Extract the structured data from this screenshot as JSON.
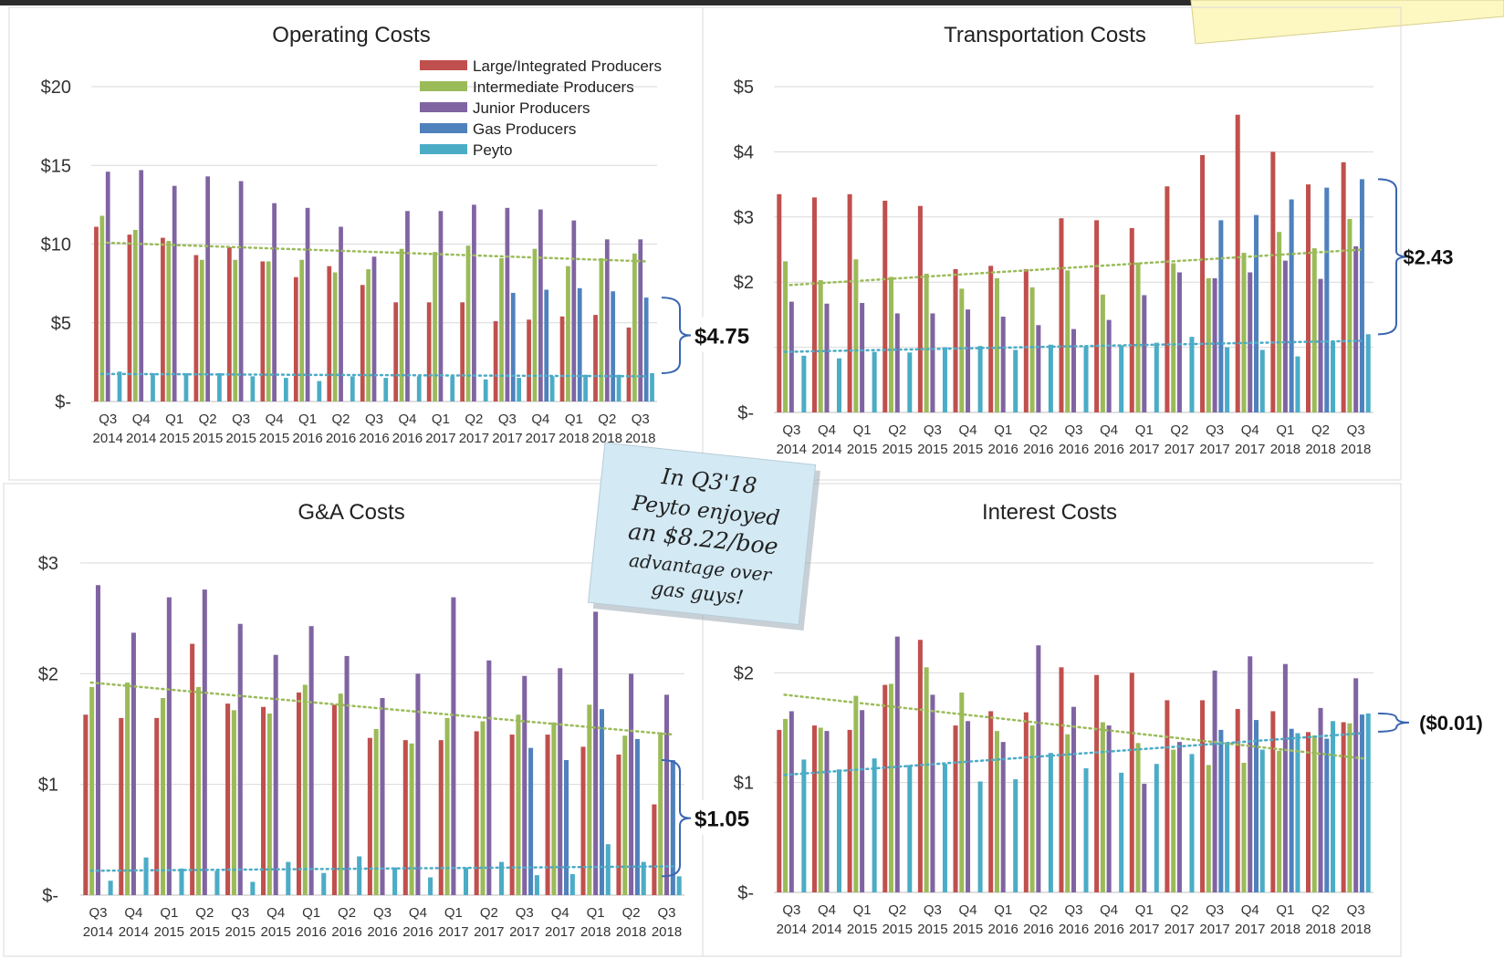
{
  "chart_data": [
    {
      "type": "bar",
      "title": "Operating Costs",
      "ylim": [
        0,
        20
      ],
      "yticks": [
        {
          "value": 0,
          "label": "$-"
        },
        {
          "value": 5,
          "label": "$5"
        },
        {
          "value": 10,
          "label": "$10"
        },
        {
          "value": 15,
          "label": "$15"
        },
        {
          "value": 20,
          "label": "$20"
        }
      ],
      "legend": "top-right",
      "show_legend": true,
      "categories": [
        {
          "q": "Q3",
          "y": "2014"
        },
        {
          "q": "Q4",
          "y": "2014"
        },
        {
          "q": "Q1",
          "y": "2015"
        },
        {
          "q": "Q2",
          "y": "2015"
        },
        {
          "q": "Q3",
          "y": "2015"
        },
        {
          "q": "Q4",
          "y": "2015"
        },
        {
          "q": "Q1",
          "y": "2016"
        },
        {
          "q": "Q2",
          "y": "2016"
        },
        {
          "q": "Q3",
          "y": "2016"
        },
        {
          "q": "Q4",
          "y": "2016"
        },
        {
          "q": "Q1",
          "y": "2017"
        },
        {
          "q": "Q2",
          "y": "2017"
        },
        {
          "q": "Q3",
          "y": "2017"
        },
        {
          "q": "Q4",
          "y": "2017"
        },
        {
          "q": "Q1",
          "y": "2018"
        },
        {
          "q": "Q2",
          "y": "2018"
        },
        {
          "q": "Q3",
          "y": "2018"
        }
      ],
      "series": [
        {
          "name": "Large/Integrated Producers",
          "color": "#c0504d",
          "values": [
            11.1,
            10.6,
            10.4,
            9.3,
            9.8,
            8.9,
            7.9,
            8.6,
            7.4,
            6.3,
            6.3,
            6.3,
            5.1,
            5.2,
            5.4,
            5.5,
            4.7
          ]
        },
        {
          "name": "Intermediate Producers",
          "color": "#9bbb59",
          "values": [
            11.8,
            10.9,
            10.2,
            9.0,
            9.0,
            8.9,
            9.0,
            8.2,
            8.4,
            9.7,
            9.5,
            9.9,
            9.1,
            9.7,
            8.6,
            9.1,
            9.4
          ]
        },
        {
          "name": "Junior Producers",
          "color": "#8064a2",
          "values": [
            14.6,
            14.7,
            13.7,
            14.3,
            14.0,
            12.6,
            12.3,
            11.1,
            9.2,
            12.1,
            12.1,
            12.5,
            12.3,
            12.2,
            11.5,
            10.3,
            10.3
          ]
        },
        {
          "name": "Gas Producers",
          "color": "#4f81bd",
          "values": [
            null,
            null,
            null,
            null,
            null,
            null,
            null,
            null,
            null,
            null,
            null,
            null,
            6.9,
            7.1,
            7.2,
            7.0,
            6.6
          ]
        },
        {
          "name": "Peyto",
          "color": "#4bacc6",
          "values": [
            1.9,
            1.8,
            1.8,
            1.8,
            1.6,
            1.5,
            1.3,
            1.6,
            1.5,
            1.6,
            1.6,
            1.4,
            1.5,
            1.6,
            1.7,
            1.7,
            1.8
          ]
        }
      ],
      "trendlines": [
        {
          "series": "Intermediate Producers",
          "start": 10.1,
          "end": 8.9
        },
        {
          "series": "Peyto",
          "start": 1.75,
          "end": 1.6
        }
      ],
      "annotation": {
        "label": "$4.75",
        "from": 6.6,
        "to": 1.8
      }
    },
    {
      "type": "bar",
      "title": "Transportation Costs",
      "ylim": [
        0,
        5
      ],
      "yticks": [
        {
          "value": 0,
          "label": "$-"
        },
        {
          "value": 1,
          "label": ""
        },
        {
          "value": 2,
          "label": "$2"
        },
        {
          "value": 3,
          "label": "$3"
        },
        {
          "value": 4,
          "label": "$4"
        },
        {
          "value": 5,
          "label": "$5"
        }
      ],
      "show_legend": false,
      "categories": [
        {
          "q": "Q3",
          "y": "2014"
        },
        {
          "q": "Q4",
          "y": "2014"
        },
        {
          "q": "Q1",
          "y": "2015"
        },
        {
          "q": "Q2",
          "y": "2015"
        },
        {
          "q": "Q3",
          "y": "2015"
        },
        {
          "q": "Q4",
          "y": "2015"
        },
        {
          "q": "Q1",
          "y": "2016"
        },
        {
          "q": "Q2",
          "y": "2016"
        },
        {
          "q": "Q3",
          "y": "2016"
        },
        {
          "q": "Q4",
          "y": "2016"
        },
        {
          "q": "Q1",
          "y": "2017"
        },
        {
          "q": "Q2",
          "y": "2017"
        },
        {
          "q": "Q3",
          "y": "2017"
        },
        {
          "q": "Q4",
          "y": "2017"
        },
        {
          "q": "Q1",
          "y": "2018"
        },
        {
          "q": "Q2",
          "y": "2018"
        },
        {
          "q": "Q3",
          "y": "2018"
        }
      ],
      "series": [
        {
          "name": "Large/Integrated Producers",
          "color": "#c0504d",
          "values": [
            3.35,
            3.3,
            3.35,
            3.25,
            3.17,
            2.2,
            2.25,
            2.2,
            2.98,
            2.95,
            2.83,
            3.47,
            3.95,
            4.57,
            4.0,
            3.5,
            3.84
          ]
        },
        {
          "name": "Intermediate Producers",
          "color": "#9bbb59",
          "values": [
            2.32,
            2.03,
            2.35,
            2.08,
            2.13,
            1.9,
            2.06,
            1.92,
            2.18,
            1.81,
            2.3,
            2.29,
            2.06,
            2.45,
            2.77,
            2.52,
            2.97
          ]
        },
        {
          "name": "Junior Producers",
          "color": "#8064a2",
          "values": [
            1.7,
            1.67,
            1.68,
            1.52,
            1.52,
            1.58,
            1.47,
            1.34,
            1.28,
            1.42,
            1.8,
            2.15,
            2.06,
            2.15,
            2.33,
            2.05,
            2.55
          ]
        },
        {
          "name": "Gas Producers",
          "color": "#4f81bd",
          "values": [
            null,
            null,
            null,
            null,
            null,
            null,
            null,
            null,
            null,
            null,
            null,
            null,
            2.95,
            3.03,
            3.27,
            3.45,
            3.58
          ]
        },
        {
          "name": "Peyto",
          "color": "#4bacc6",
          "values": [
            0.87,
            0.83,
            0.93,
            0.92,
            1.0,
            1.02,
            0.96,
            1.04,
            1.02,
            1.03,
            1.07,
            1.16,
            1.0,
            0.96,
            0.86,
            1.09,
            1.2
          ]
        }
      ],
      "trendlines": [
        {
          "series": "Intermediate Producers",
          "start": 1.95,
          "end": 2.5
        },
        {
          "series": "Peyto",
          "start": 0.93,
          "end": 1.1
        }
      ],
      "annotation": {
        "label": "$2.43",
        "from": 3.58,
        "to": 1.2
      }
    },
    {
      "type": "bar",
      "title": "G&A Costs",
      "ylim": [
        0,
        3
      ],
      "yticks": [
        {
          "value": 0,
          "label": "$-"
        },
        {
          "value": 1,
          "label": "$1"
        },
        {
          "value": 2,
          "label": "$2"
        },
        {
          "value": 3,
          "label": "$3"
        }
      ],
      "show_legend": false,
      "categories": [
        {
          "q": "Q3",
          "y": "2014"
        },
        {
          "q": "Q4",
          "y": "2014"
        },
        {
          "q": "Q1",
          "y": "2015"
        },
        {
          "q": "Q2",
          "y": "2015"
        },
        {
          "q": "Q3",
          "y": "2015"
        },
        {
          "q": "Q4",
          "y": "2015"
        },
        {
          "q": "Q1",
          "y": "2016"
        },
        {
          "q": "Q2",
          "y": "2016"
        },
        {
          "q": "Q3",
          "y": "2016"
        },
        {
          "q": "Q4",
          "y": "2016"
        },
        {
          "q": "Q1",
          "y": "2017"
        },
        {
          "q": "Q2",
          "y": "2017"
        },
        {
          "q": "Q3",
          "y": "2017"
        },
        {
          "q": "Q4",
          "y": "2017"
        },
        {
          "q": "Q1",
          "y": "2018"
        },
        {
          "q": "Q2",
          "y": "2018"
        },
        {
          "q": "Q3",
          "y": "2018"
        }
      ],
      "series": [
        {
          "name": "Large/Integrated Producers",
          "color": "#c0504d",
          "values": [
            1.63,
            1.6,
            1.6,
            2.27,
            1.73,
            1.7,
            1.83,
            1.72,
            1.42,
            1.4,
            1.4,
            1.48,
            1.45,
            1.45,
            1.34,
            1.27,
            0.82
          ]
        },
        {
          "name": "Intermediate Producers",
          "color": "#9bbb59",
          "values": [
            1.88,
            1.92,
            1.78,
            1.88,
            1.67,
            1.64,
            1.9,
            1.82,
            1.5,
            1.37,
            1.6,
            1.57,
            1.63,
            1.56,
            1.72,
            1.44,
            1.47
          ]
        },
        {
          "name": "Junior Producers",
          "color": "#8064a2",
          "values": [
            2.8,
            2.37,
            2.69,
            2.76,
            2.45,
            2.17,
            2.43,
            2.16,
            1.78,
            2.0,
            2.69,
            2.12,
            1.98,
            2.05,
            2.56,
            2.0,
            1.81
          ]
        },
        {
          "name": "Gas Producers",
          "color": "#4f81bd",
          "values": [
            null,
            null,
            null,
            null,
            null,
            null,
            null,
            null,
            null,
            null,
            null,
            null,
            1.33,
            1.22,
            1.68,
            1.41,
            1.22
          ]
        },
        {
          "name": "Peyto",
          "color": "#4bacc6",
          "values": [
            0.13,
            0.34,
            0.24,
            0.22,
            0.12,
            0.3,
            0.2,
            0.35,
            0.25,
            0.16,
            0.25,
            0.3,
            0.18,
            0.19,
            0.46,
            0.3,
            0.17
          ]
        }
      ],
      "trendlines": [
        {
          "series": "Intermediate Producers",
          "start": 1.92,
          "end": 1.45
        },
        {
          "series": "Peyto",
          "start": 0.22,
          "end": 0.26
        }
      ],
      "annotation": {
        "label": "$1.05",
        "from": 1.22,
        "to": 0.17
      }
    },
    {
      "type": "bar",
      "title": "Interest Costs",
      "ylim": [
        0,
        3
      ],
      "yticks": [
        {
          "value": 0,
          "label": "$-"
        },
        {
          "value": 1,
          "label": "$1"
        },
        {
          "value": 2,
          "label": "$2"
        },
        {
          "value": 3,
          "label": ""
        }
      ],
      "show_legend": false,
      "categories": [
        {
          "q": "Q3",
          "y": "2014"
        },
        {
          "q": "Q4",
          "y": "2014"
        },
        {
          "q": "Q1",
          "y": "2015"
        },
        {
          "q": "Q2",
          "y": "2015"
        },
        {
          "q": "Q3",
          "y": "2015"
        },
        {
          "q": "Q4",
          "y": "2015"
        },
        {
          "q": "Q1",
          "y": "2016"
        },
        {
          "q": "Q2",
          "y": "2016"
        },
        {
          "q": "Q3",
          "y": "2016"
        },
        {
          "q": "Q4",
          "y": "2016"
        },
        {
          "q": "Q1",
          "y": "2017"
        },
        {
          "q": "Q2",
          "y": "2017"
        },
        {
          "q": "Q3",
          "y": "2017"
        },
        {
          "q": "Q4",
          "y": "2017"
        },
        {
          "q": "Q1",
          "y": "2018"
        },
        {
          "q": "Q2",
          "y": "2018"
        },
        {
          "q": "Q3",
          "y": "2018"
        }
      ],
      "series": [
        {
          "name": "Large/Integrated Producers",
          "color": "#c0504d",
          "values": [
            1.48,
            1.52,
            1.48,
            1.89,
            2.3,
            1.52,
            1.65,
            1.64,
            2.05,
            1.98,
            2.0,
            1.75,
            1.75,
            1.67,
            1.65,
            1.46,
            1.55
          ]
        },
        {
          "name": "Intermediate Producers",
          "color": "#9bbb59",
          "values": [
            1.58,
            1.5,
            1.79,
            1.9,
            2.05,
            1.82,
            1.47,
            1.52,
            1.44,
            1.55,
            1.36,
            1.3,
            1.16,
            1.18,
            1.29,
            1.43,
            1.54
          ]
        },
        {
          "name": "Junior Producers",
          "color": "#8064a2",
          "values": [
            1.65,
            1.47,
            1.66,
            2.33,
            1.8,
            1.56,
            1.37,
            2.25,
            1.69,
            1.52,
            0.99,
            1.37,
            2.02,
            2.15,
            2.08,
            1.68,
            1.95
          ]
        },
        {
          "name": "Gas Producers",
          "color": "#4f81bd",
          "values": [
            null,
            null,
            null,
            null,
            null,
            null,
            null,
            null,
            null,
            null,
            null,
            null,
            1.48,
            1.57,
            1.49,
            1.4,
            1.62
          ]
        },
        {
          "name": "Peyto",
          "color": "#4bacc6",
          "values": [
            1.21,
            1.12,
            1.22,
            1.16,
            1.17,
            1.01,
            1.03,
            1.27,
            1.13,
            1.09,
            1.17,
            1.26,
            1.36,
            1.3,
            1.45,
            1.56,
            1.63
          ]
        }
      ],
      "trendlines": [
        {
          "series": "Intermediate Producers",
          "start": 1.8,
          "end": 1.22
        },
        {
          "series": "Peyto",
          "start": 1.07,
          "end": 1.45
        }
      ],
      "annotation": {
        "label": "($0.01)",
        "from": 1.63,
        "to": 1.63
      }
    }
  ],
  "sticky_note": {
    "lines": [
      "In Q3'18",
      "Peyto enjoyed",
      "an $8.22/boe",
      "advantage over",
      "gas guys!"
    ]
  }
}
